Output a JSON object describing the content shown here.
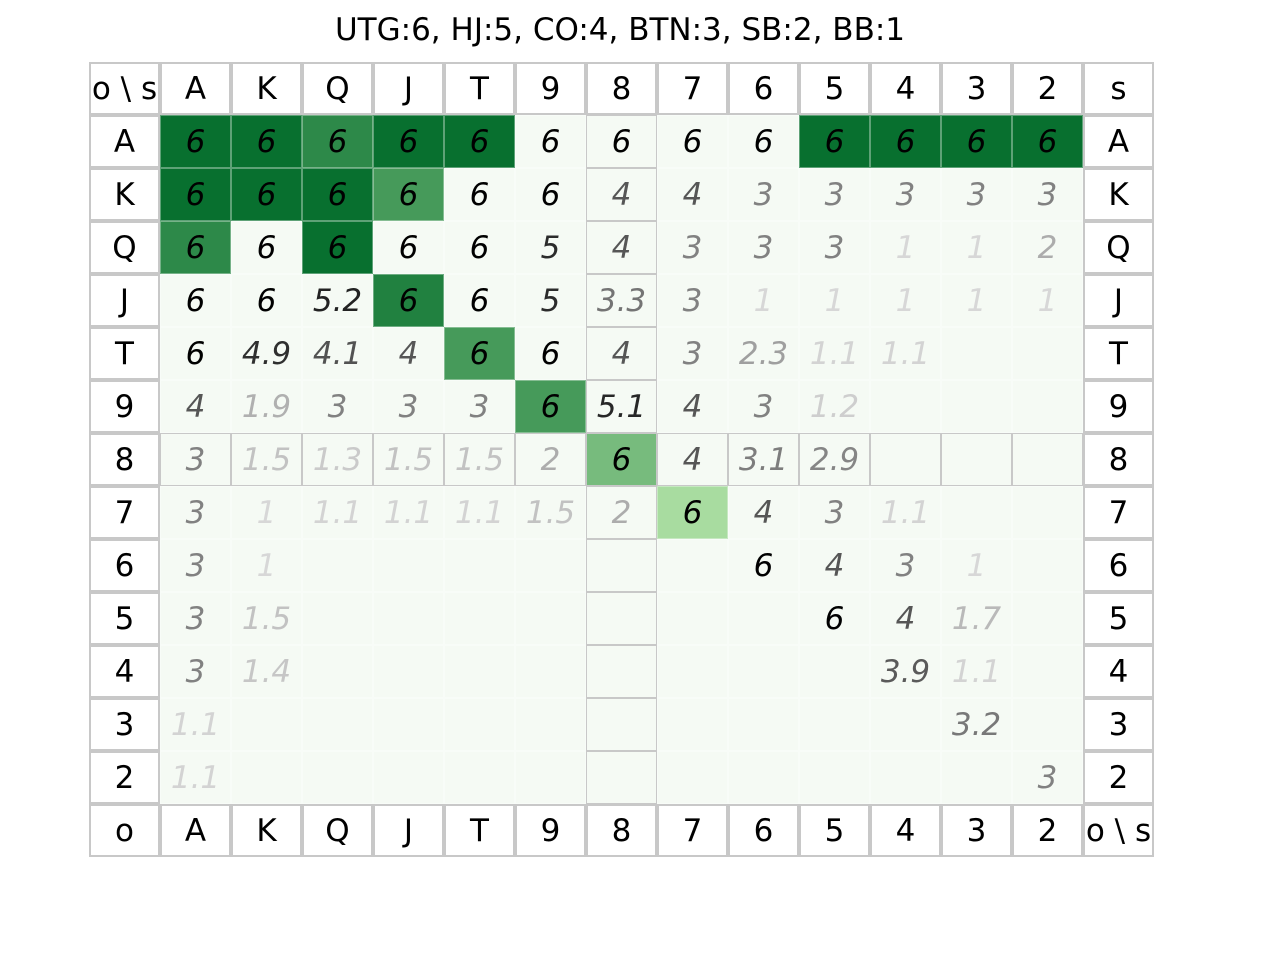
{
  "chart_data": {
    "type": "heatmap",
    "title": "UTG:6, HJ:5, CO:4, BTN:3, SB:2, BB:1",
    "corner_top_left": "o \\ s",
    "corner_top_right": "s",
    "corner_bottom_left": "o",
    "corner_bottom_right": "o \\ s",
    "ranks": [
      "A",
      "K",
      "Q",
      "J",
      "T",
      "9",
      "8",
      "7",
      "6",
      "5",
      "4",
      "3",
      "2"
    ],
    "color_scale": {
      "min": 1,
      "max": 6,
      "empty_color": "#f5faf4",
      "light_color": "#a8dca0",
      "dark_color": "#08702f",
      "shading": "darker = more combos played (cell value 6 at 100% frequency)"
    },
    "values": [
      [
        "6",
        "6",
        "6",
        "6",
        "6",
        "6",
        "6",
        "6",
        "6",
        "6",
        "6",
        "6",
        "6"
      ],
      [
        "6",
        "6",
        "6",
        "6",
        "6",
        "6",
        "4",
        "4",
        "3",
        "3",
        "3",
        "3",
        "3"
      ],
      [
        "6",
        "6",
        "6",
        "6",
        "6",
        "5",
        "4",
        "3",
        "3",
        "3",
        "1",
        "1",
        "2"
      ],
      [
        "6",
        "6",
        "5.2",
        "6",
        "6",
        "5",
        "3.3",
        "3",
        "1",
        "1",
        "1",
        "1",
        "1"
      ],
      [
        "6",
        "4.9",
        "4.1",
        "4",
        "6",
        "6",
        "4",
        "3",
        "2.3",
        "1.1",
        "1.1",
        "",
        ""
      ],
      [
        "4",
        "1.9",
        "3",
        "3",
        "3",
        "6",
        "5.1",
        "4",
        "3",
        "1.2",
        "",
        "",
        ""
      ],
      [
        "3",
        "1.5",
        "1.3",
        "1.5",
        "1.5",
        "2",
        "6",
        "4",
        "3.1",
        "2.9",
        "",
        "",
        ""
      ],
      [
        "3",
        "1",
        "1.1",
        "1.1",
        "1.1",
        "1.5",
        "2",
        "6",
        "4",
        "3",
        "1.1",
        "",
        ""
      ],
      [
        "3",
        "1",
        "",
        "",
        "",
        "",
        "",
        "",
        "6",
        "4",
        "3",
        "1",
        ""
      ],
      [
        "3",
        "1.5",
        "",
        "",
        "",
        "",
        "",
        "",
        "",
        "6",
        "4",
        "1.7",
        ""
      ],
      [
        "3",
        "1.4",
        "",
        "",
        "",
        "",
        "",
        "",
        "",
        "",
        "3.9",
        "1.1",
        ""
      ],
      [
        "1.1",
        "",
        "",
        "",
        "",
        "",
        "",
        "",
        "",
        "",
        "",
        "3.2",
        ""
      ],
      [
        "1.1",
        "",
        "",
        "",
        "",
        "",
        "",
        "",
        "",
        "",
        "",
        "",
        "3"
      ]
    ],
    "frequency": [
      [
        0.95,
        0.95,
        0.8,
        0.95,
        0.95,
        0,
        0,
        0,
        0,
        0.95,
        0.95,
        0.95,
        0.95
      ],
      [
        0.95,
        0.95,
        0.95,
        0.7,
        0,
        0,
        0,
        0,
        0,
        0,
        0,
        0,
        0
      ],
      [
        0.8,
        0,
        0.95,
        0,
        0,
        0,
        0,
        0,
        0,
        0,
        0,
        0,
        0
      ],
      [
        0,
        0,
        0,
        0.85,
        0,
        0,
        0,
        0,
        0,
        0,
        0,
        0,
        0
      ],
      [
        0,
        0,
        0,
        0,
        0.7,
        0,
        0,
        0,
        0,
        0,
        0,
        0,
        0
      ],
      [
        0,
        0,
        0,
        0,
        0,
        0.7,
        0,
        0,
        0,
        0,
        0,
        0,
        0
      ],
      [
        0,
        0,
        0,
        0,
        0,
        0,
        0.5,
        0,
        0,
        0,
        0,
        0,
        0
      ],
      [
        0,
        0,
        0,
        0,
        0,
        0,
        0,
        0.3,
        0,
        0,
        0,
        0,
        0
      ],
      [
        0,
        0,
        0,
        0,
        0,
        0,
        0,
        0,
        0,
        0,
        0,
        0,
        0
      ],
      [
        0,
        0,
        0,
        0,
        0,
        0,
        0,
        0,
        0,
        0,
        0,
        0,
        0
      ],
      [
        0,
        0,
        0,
        0,
        0,
        0,
        0,
        0,
        0,
        0,
        0,
        0,
        0
      ],
      [
        0,
        0,
        0,
        0,
        0,
        0,
        0,
        0,
        0,
        0,
        0,
        0,
        0
      ],
      [
        0,
        0,
        0,
        0,
        0,
        0,
        0,
        0,
        0,
        0,
        0,
        0,
        0
      ]
    ],
    "emphasized_rank": "8",
    "xlabel": "",
    "ylabel": "",
    "legend": "none",
    "grid": true
  }
}
